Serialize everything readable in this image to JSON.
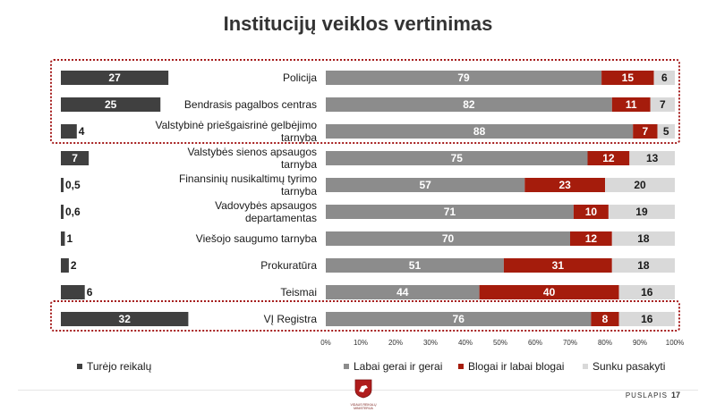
{
  "title": "Institucijų veiklos vertinimas",
  "page_label": "PUSLAPIS",
  "page_number": "17",
  "logo_text": "VIDAUS REIKALŲ MINISTERIJA",
  "colors": {
    "had_dealings": "#404040",
    "good": "#8c8c8c",
    "bad": "#a51c0c",
    "hard_to_say": "#d9d9d9",
    "highlight_border": "#a51c1c"
  },
  "chart_data": [
    {
      "type": "bar",
      "orientation": "horizontal",
      "series": [
        {
          "name": "Turėjo reikalų",
          "values": [
            27,
            25,
            4,
            7,
            0.5,
            0.6,
            1,
            2,
            6,
            32
          ],
          "labels": [
            "27",
            "25",
            "4",
            "7",
            "0,5",
            "0,6",
            "1",
            "2",
            "6",
            "32"
          ]
        }
      ]
    },
    {
      "type": "bar",
      "orientation": "horizontal",
      "stacked": true,
      "categories": [
        "Policija",
        "Bendrasis pagalbos centras",
        "Valstybinė priešgaisrinė gelbėjimo tarnyba",
        "Valstybės sienos apsaugos tarnyba",
        "Finansinių nusikaltimų tyrimo tarnyba",
        "Vadovybės apsaugos departamentas",
        "Viešojo saugumo tarnyba",
        "Prokuratūra",
        "Teismai",
        "VĮ Registra"
      ],
      "series": [
        {
          "name": "Labai gerai ir gerai",
          "values": [
            79,
            82,
            88,
            75,
            57,
            71,
            70,
            51,
            44,
            76
          ]
        },
        {
          "name": "Blogai ir labai blogai",
          "values": [
            15,
            11,
            7,
            12,
            23,
            10,
            12,
            31,
            40,
            8
          ]
        },
        {
          "name": "Sunku pasakyti",
          "values": [
            6,
            7,
            5,
            13,
            20,
            19,
            18,
            18,
            16,
            16
          ]
        }
      ],
      "xlim": [
        0,
        100
      ],
      "xticks": [
        "0%",
        "10%",
        "20%",
        "30%",
        "40%",
        "50%",
        "60%",
        "70%",
        "80%",
        "90%",
        "100%"
      ],
      "legend_position": "bottom",
      "highlighted_groups": [
        [
          0,
          2
        ],
        [
          9,
          9
        ]
      ]
    }
  ]
}
